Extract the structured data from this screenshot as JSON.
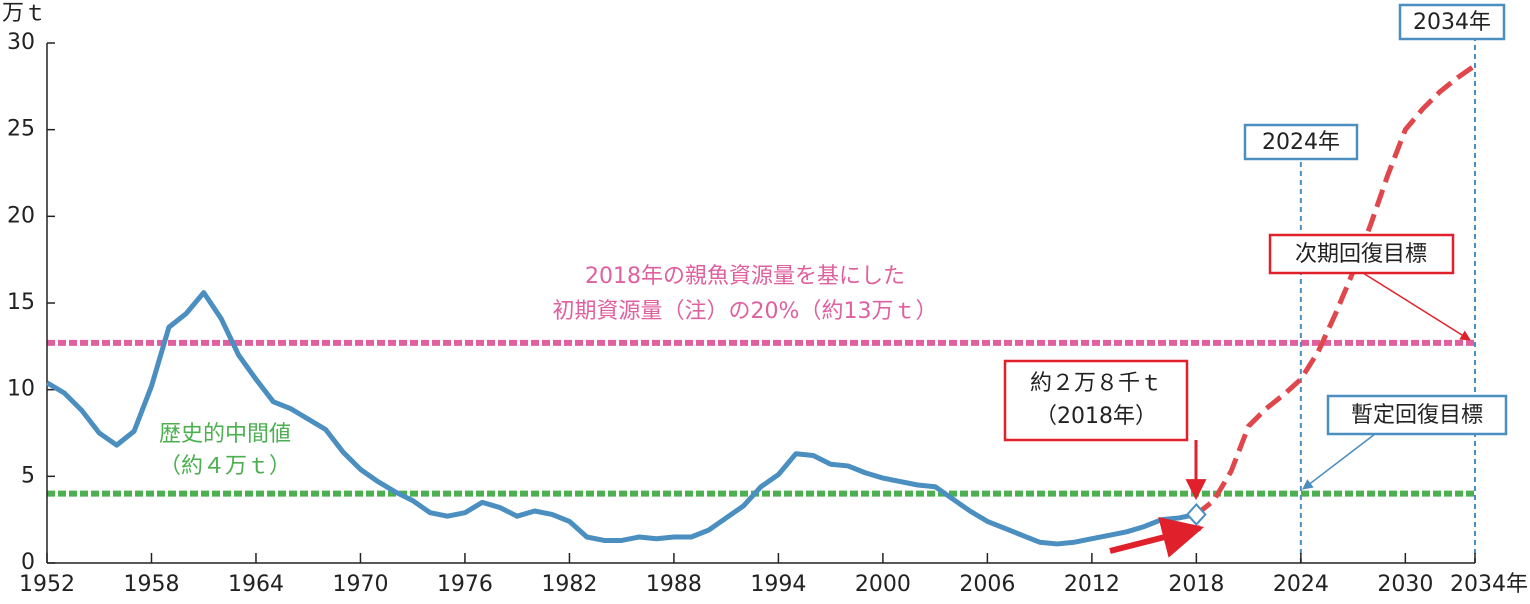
{
  "chart_data": {
    "type": "line",
    "y_label": "万ｔ",
    "xlim": [
      1952,
      2034
    ],
    "ylim": [
      0,
      30
    ],
    "xticks": [
      1952,
      1958,
      1964,
      1970,
      1976,
      1982,
      1988,
      1994,
      2000,
      2006,
      2012,
      2018,
      2024,
      2030,
      {
        "value": 2034,
        "label": "2034年"
      }
    ],
    "yticks": [
      0,
      5,
      10,
      15,
      20,
      25,
      30
    ],
    "grid": false,
    "series": [
      {
        "color": "#4a8fbf",
        "style": "solid",
        "x": [
          1952,
          1953,
          1954,
          1955,
          1956,
          1957,
          1958,
          1959,
          1960,
          1961,
          1962,
          1963,
          1964,
          1965,
          1966,
          1967,
          1968,
          1969,
          1970,
          1971,
          1972,
          1973,
          1974,
          1975,
          1976,
          1977,
          1978,
          1979,
          1980,
          1981,
          1982,
          1983,
          1984,
          1985,
          1986,
          1987,
          1988,
          1989,
          1990,
          1991,
          1992,
          1993,
          1994,
          1995,
          1996,
          1997,
          1998,
          1999,
          2000,
          2001,
          2002,
          2003,
          2004,
          2005,
          2006,
          2007,
          2008,
          2009,
          2010,
          2011,
          2012,
          2013,
          2014,
          2015,
          2016,
          2017,
          2018
        ],
        "values": [
          10.4,
          9.8,
          8.8,
          7.5,
          6.8,
          7.6,
          10.2,
          13.6,
          14.4,
          15.6,
          14.1,
          12.0,
          10.6,
          9.3,
          8.9,
          8.3,
          7.7,
          6.4,
          5.4,
          4.7,
          4.1,
          3.6,
          2.9,
          2.7,
          2.9,
          3.5,
          3.2,
          2.7,
          3.0,
          2.8,
          2.4,
          1.5,
          1.3,
          1.3,
          1.5,
          1.4,
          1.5,
          1.5,
          1.9,
          2.6,
          3.3,
          4.4,
          5.1,
          6.3,
          6.2,
          5.7,
          5.6,
          5.2,
          4.9,
          4.7,
          4.5,
          4.4,
          3.7,
          3.0,
          2.4,
          2.0,
          1.6,
          1.2,
          1.1,
          1.2,
          1.4,
          1.6,
          1.8,
          2.1,
          2.5,
          2.6,
          2.8
        ]
      },
      {
        "color": "#e0474c",
        "style": "dashed",
        "x": [
          2018,
          2019,
          2020,
          2021,
          2022,
          2023,
          2024,
          2025,
          2026,
          2027,
          2028,
          2029,
          2030,
          2031,
          2032,
          2033,
          2034
        ],
        "values": [
          2.8,
          3.6,
          5.3,
          7.9,
          8.9,
          9.7,
          10.6,
          12.2,
          14.4,
          16.8,
          19.5,
          22.4,
          25.0,
          26.2,
          27.2,
          28.0,
          28.7
        ]
      }
    ],
    "hlines": [
      {
        "value": 12.7,
        "color": "#e0609f"
      },
      {
        "value": 4,
        "color": "#4caf50"
      }
    ],
    "vlines": [
      {
        "value": 2024,
        "color": "#4a8fbf"
      },
      {
        "value": 2034,
        "color": "#4a8fbf"
      }
    ],
    "marker": {
      "x": 2018,
      "value": 2.8
    },
    "annotations": [
      "2018年の親魚資源量を基にした",
      "初期資源量（注）の20%（約13万ｔ）",
      "歴史的中間値",
      "（約４万ｔ）",
      "約２万８千ｔ",
      "（2018年）",
      "2024年",
      "2034年",
      "次期回復目標",
      "暫定回復目標"
    ]
  }
}
